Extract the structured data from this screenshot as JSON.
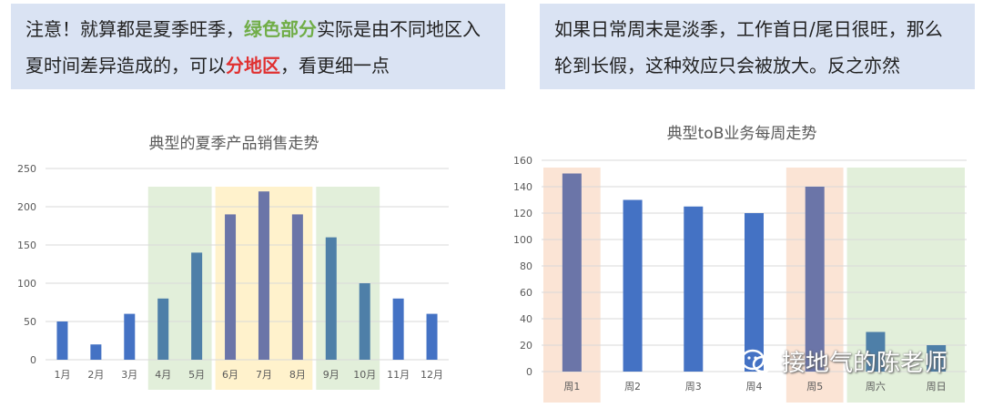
{
  "notes": {
    "left": {
      "part1": "注意！就算都是夏季旺季，",
      "highlight1": "绿色部分",
      "part2": "实际是由不同地区入夏时间差异造成的，可以",
      "highlight2": "分地区",
      "part3": "，看更细一点"
    },
    "right": {
      "text": "如果日常周末是淡季，工作首日/尾日很旺，那么轮到长假，这种效应只会被放大。反之亦然"
    }
  },
  "watermark": {
    "text": "接地气的陈老师",
    "icon": "wechat-icon"
  },
  "colors": {
    "bar_blue": "#4472c4",
    "bar_steel": "#4e7fa8",
    "bar_slate": "#6b75a8",
    "green_band": "#e2efda",
    "yellow_band": "#fff2cc",
    "orange_band": "#fbe4d5"
  },
  "chart_data": [
    {
      "type": "bar",
      "title": "典型的夏季产品销售走势",
      "categories": [
        "1月",
        "2月",
        "3月",
        "4月",
        "5月",
        "6月",
        "7月",
        "8月",
        "9月",
        "10月",
        "11月",
        "12月"
      ],
      "values": [
        50,
        20,
        60,
        80,
        140,
        190,
        220,
        190,
        160,
        100,
        80,
        60
      ],
      "ylim": [
        0,
        250
      ],
      "yticks": [
        0,
        50,
        100,
        150,
        200,
        250
      ],
      "grid": true,
      "highlights": [
        {
          "from": 3,
          "to": 4,
          "color": "green"
        },
        {
          "from": 5,
          "to": 7,
          "color": "yellow"
        },
        {
          "from": 8,
          "to": 9,
          "color": "green"
        }
      ]
    },
    {
      "type": "bar",
      "title": "典型toB业务每周走势",
      "categories": [
        "周1",
        "周2",
        "周3",
        "周4",
        "周5",
        "周六",
        "周日"
      ],
      "values": [
        150,
        130,
        125,
        120,
        140,
        30,
        20
      ],
      "ylim": [
        0,
        160
      ],
      "yticks": [
        0,
        20,
        40,
        60,
        80,
        100,
        120,
        140,
        160
      ],
      "grid": true,
      "highlights": [
        {
          "from": 0,
          "to": 0,
          "color": "orange"
        },
        {
          "from": 4,
          "to": 4,
          "color": "orange"
        },
        {
          "from": 5,
          "to": 6,
          "color": "green"
        }
      ]
    }
  ]
}
